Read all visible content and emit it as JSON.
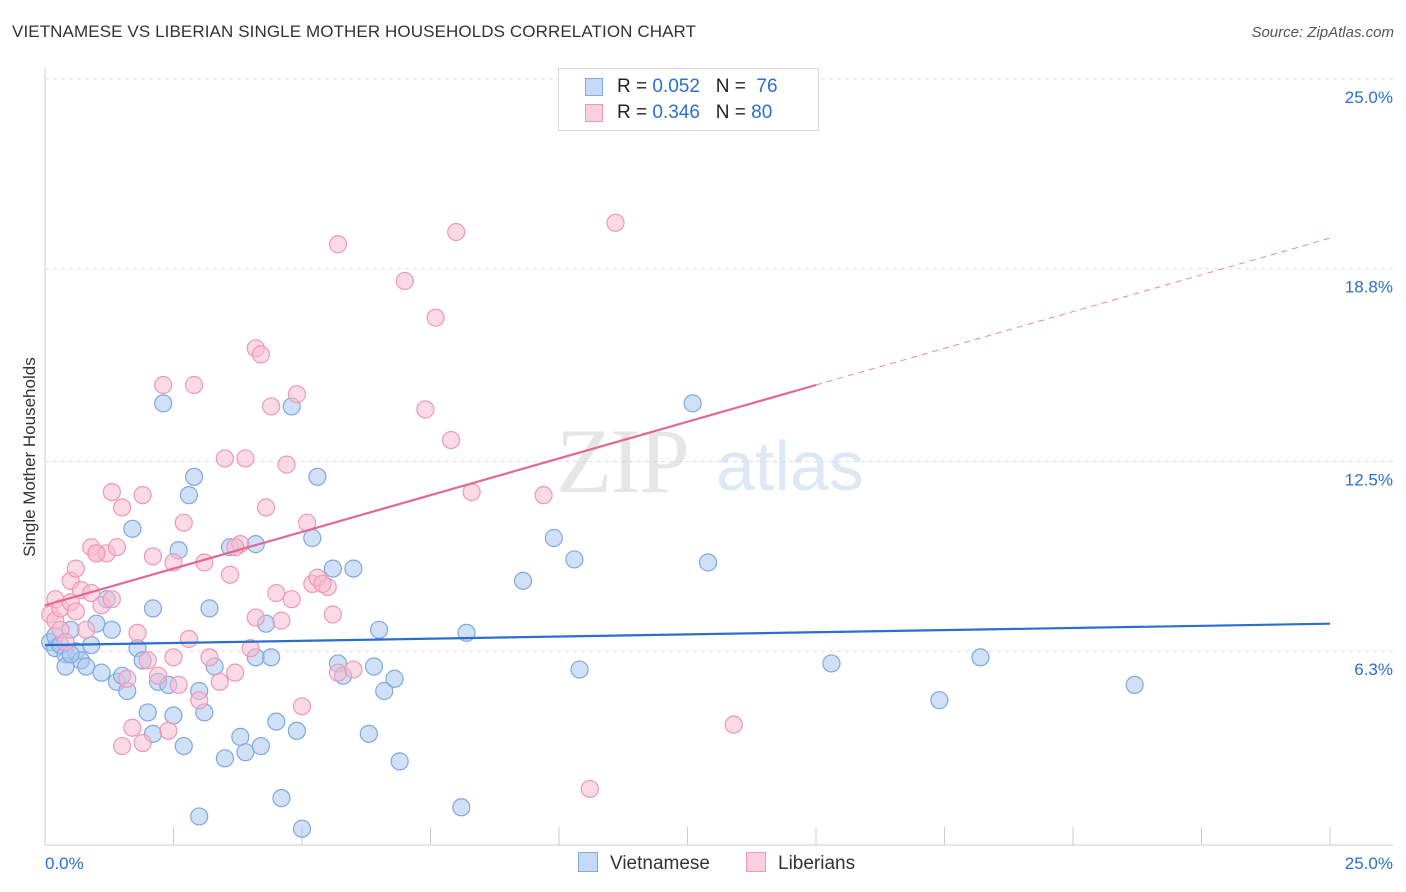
{
  "title": "VIETNAMESE VS LIBERIAN SINGLE MOTHER HOUSEHOLDS CORRELATION CHART",
  "source": "Source: ZipAtlas.com",
  "watermark": {
    "part1": "ZIP",
    "part2": "atlas"
  },
  "legend": {
    "rows": [
      {
        "r_label": "R = ",
        "r_value": "0.052",
        "n_label": "N = ",
        "n_value": "76"
      },
      {
        "r_label": "R = ",
        "r_value": "0.346",
        "n_label": "N = ",
        "n_value": "80"
      }
    ]
  },
  "bottom_legend": {
    "series1": "Vietnamese",
    "series2": "Liberians"
  },
  "colors": {
    "blue_fill": "#aac8f0",
    "blue_stroke": "#7fa8dc",
    "blue_line": "#2a6fcf",
    "pink_fill": "#f8bcd0",
    "pink_stroke": "#ee98b6",
    "pink_line": "#e26892",
    "axis_text": "#2a6fcf",
    "grid": "#dddddd"
  },
  "chart_data": {
    "type": "scatter",
    "title": "VIETNAMESE VS LIBERIAN SINGLE MOTHER HOUSEHOLDS CORRELATION CHART",
    "xlabel": "",
    "ylabel": "Single Mother Households",
    "xlim": [
      0,
      25
    ],
    "ylim": [
      0,
      25
    ],
    "x_tick_labels": [
      "0.0%",
      "25.0%"
    ],
    "y_ticks": [
      6.3,
      12.5,
      18.8,
      25.0
    ],
    "y_tick_labels": [
      "6.3%",
      "12.5%",
      "18.8%",
      "25.0%"
    ],
    "grid": "horizontal dashed",
    "legend_position": "top-center",
    "series": [
      {
        "name": "Vietnamese",
        "color": "#aac8f0",
        "trend": {
          "x": [
            0,
            25
          ],
          "y": [
            6.5,
            7.2
          ]
        },
        "points": [
          [
            0.1,
            6.6
          ],
          [
            0.2,
            6.4
          ],
          [
            0.2,
            6.8
          ],
          [
            0.3,
            6.5
          ],
          [
            0.4,
            6.2
          ],
          [
            0.4,
            5.8
          ],
          [
            0.5,
            7.0
          ],
          [
            0.6,
            6.3
          ],
          [
            0.7,
            6.0
          ],
          [
            0.8,
            5.8
          ],
          [
            0.9,
            6.5
          ],
          [
            1.0,
            7.2
          ],
          [
            1.2,
            8.0
          ],
          [
            1.3,
            7.0
          ],
          [
            1.4,
            5.3
          ],
          [
            1.5,
            5.5
          ],
          [
            1.6,
            5.0
          ],
          [
            1.7,
            10.3
          ],
          [
            1.8,
            6.4
          ],
          [
            1.9,
            6.0
          ],
          [
            2.0,
            4.3
          ],
          [
            2.1,
            3.6
          ],
          [
            2.1,
            7.7
          ],
          [
            2.2,
            5.3
          ],
          [
            2.3,
            14.4
          ],
          [
            2.5,
            4.2
          ],
          [
            2.6,
            9.6
          ],
          [
            2.7,
            3.2
          ],
          [
            2.8,
            11.4
          ],
          [
            2.9,
            12.0
          ],
          [
            3.0,
            5.0
          ],
          [
            3.1,
            4.3
          ],
          [
            3.2,
            7.7
          ],
          [
            3.3,
            5.8
          ],
          [
            3.5,
            2.8
          ],
          [
            3.6,
            9.7
          ],
          [
            3.8,
            3.5
          ],
          [
            3.9,
            3.0
          ],
          [
            4.1,
            6.1
          ],
          [
            4.1,
            9.8
          ],
          [
            4.2,
            3.2
          ],
          [
            4.3,
            7.2
          ],
          [
            4.4,
            6.1
          ],
          [
            4.5,
            4.0
          ],
          [
            4.6,
            1.5
          ],
          [
            4.8,
            14.3
          ],
          [
            4.9,
            3.7
          ],
          [
            5.0,
            0.5
          ],
          [
            5.2,
            10.0
          ],
          [
            5.3,
            12.0
          ],
          [
            5.6,
            9.0
          ],
          [
            5.7,
            5.9
          ],
          [
            5.8,
            5.5
          ],
          [
            6.0,
            9.0
          ],
          [
            6.3,
            3.6
          ],
          [
            6.4,
            5.8
          ],
          [
            6.5,
            7.0
          ],
          [
            6.6,
            5.0
          ],
          [
            6.8,
            5.4
          ],
          [
            6.9,
            2.7
          ],
          [
            8.1,
            1.2
          ],
          [
            8.2,
            6.9
          ],
          [
            9.3,
            8.6
          ],
          [
            9.9,
            10.0
          ],
          [
            10.3,
            9.3
          ],
          [
            10.4,
            5.7
          ],
          [
            12.6,
            14.4
          ],
          [
            12.9,
            9.2
          ],
          [
            15.3,
            5.9
          ],
          [
            17.4,
            4.7
          ],
          [
            18.2,
            6.1
          ],
          [
            21.2,
            5.2
          ],
          [
            1.1,
            5.6
          ],
          [
            3.0,
            0.9
          ],
          [
            0.5,
            6.2
          ],
          [
            2.4,
            5.2
          ]
        ]
      },
      {
        "name": "Liberians",
        "color": "#f8bcd0",
        "trend": {
          "x": [
            0,
            15
          ],
          "y": [
            7.8,
            15.0
          ]
        },
        "trend_extension": {
          "x": [
            15,
            25
          ],
          "y": [
            15.0,
            19.8
          ]
        },
        "points": [
          [
            0.1,
            7.5
          ],
          [
            0.2,
            7.3
          ],
          [
            0.2,
            8.0
          ],
          [
            0.3,
            7.0
          ],
          [
            0.3,
            7.7
          ],
          [
            0.4,
            6.6
          ],
          [
            0.5,
            7.9
          ],
          [
            0.5,
            8.6
          ],
          [
            0.6,
            7.6
          ],
          [
            0.6,
            9.0
          ],
          [
            0.7,
            8.3
          ],
          [
            0.8,
            7.0
          ],
          [
            0.9,
            8.2
          ],
          [
            0.9,
            9.7
          ],
          [
            1.0,
            9.5
          ],
          [
            1.1,
            7.8
          ],
          [
            1.2,
            9.5
          ],
          [
            1.3,
            8.0
          ],
          [
            1.3,
            11.5
          ],
          [
            1.4,
            9.7
          ],
          [
            1.5,
            11.0
          ],
          [
            1.6,
            5.4
          ],
          [
            1.7,
            3.8
          ],
          [
            1.8,
            6.9
          ],
          [
            1.9,
            11.4
          ],
          [
            2.0,
            6.0
          ],
          [
            2.1,
            9.4
          ],
          [
            2.2,
            5.5
          ],
          [
            2.3,
            15.0
          ],
          [
            2.4,
            3.7
          ],
          [
            2.5,
            9.2
          ],
          [
            2.6,
            5.2
          ],
          [
            2.7,
            10.5
          ],
          [
            2.8,
            6.7
          ],
          [
            2.9,
            15.0
          ],
          [
            3.0,
            4.7
          ],
          [
            3.1,
            9.2
          ],
          [
            3.2,
            6.1
          ],
          [
            3.4,
            5.3
          ],
          [
            3.5,
            12.6
          ],
          [
            3.6,
            8.8
          ],
          [
            3.7,
            5.6
          ],
          [
            3.8,
            9.8
          ],
          [
            3.9,
            12.6
          ],
          [
            4.0,
            6.4
          ],
          [
            4.1,
            7.4
          ],
          [
            4.1,
            16.2
          ],
          [
            4.2,
            16.0
          ],
          [
            4.3,
            11.0
          ],
          [
            4.4,
            14.3
          ],
          [
            4.5,
            8.2
          ],
          [
            4.6,
            7.3
          ],
          [
            4.7,
            12.4
          ],
          [
            4.8,
            8.0
          ],
          [
            4.9,
            14.7
          ],
          [
            5.0,
            4.5
          ],
          [
            5.1,
            10.5
          ],
          [
            5.2,
            8.5
          ],
          [
            5.3,
            8.7
          ],
          [
            5.5,
            8.4
          ],
          [
            5.6,
            7.5
          ],
          [
            5.7,
            5.6
          ],
          [
            5.7,
            19.6
          ],
          [
            6.0,
            5.7
          ],
          [
            7.0,
            18.4
          ],
          [
            7.4,
            14.2
          ],
          [
            7.6,
            17.2
          ],
          [
            7.9,
            13.2
          ],
          [
            8.0,
            20.0
          ],
          [
            8.3,
            11.5
          ],
          [
            9.7,
            11.4
          ],
          [
            10.6,
            1.8
          ],
          [
            11.1,
            20.3
          ],
          [
            13.4,
            3.9
          ],
          [
            1.0,
            9.5
          ],
          [
            1.5,
            3.2
          ],
          [
            1.9,
            3.3
          ],
          [
            2.5,
            6.1
          ],
          [
            3.7,
            9.7
          ],
          [
            5.4,
            8.5
          ]
        ]
      }
    ]
  }
}
